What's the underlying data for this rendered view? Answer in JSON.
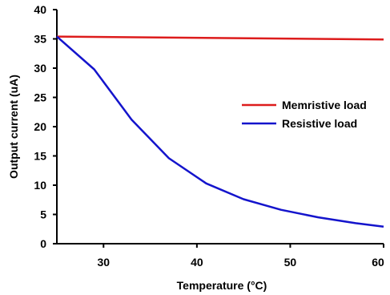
{
  "chart_data": {
    "type": "line",
    "xlabel": "Temperature (°C)",
    "ylabel": "Output current (uA)",
    "xlim": [
      25,
      60
    ],
    "ylim": [
      0,
      40
    ],
    "x_ticks": [
      30,
      40,
      50,
      60
    ],
    "y_ticks": [
      0,
      5,
      10,
      15,
      20,
      25,
      30,
      35,
      40
    ],
    "grid": false,
    "legend_position": "right",
    "series": [
      {
        "name": "Memristive load",
        "color": "#dd1c1c",
        "x": [
          25,
          60
        ],
        "y": [
          35.4,
          34.9
        ]
      },
      {
        "name": "Resistive load",
        "color": "#1414cc",
        "x": [
          25,
          29,
          33,
          37,
          41,
          45,
          49,
          53,
          57,
          60
        ],
        "y": [
          35.4,
          29.8,
          21.2,
          14.6,
          10.3,
          7.6,
          5.8,
          4.5,
          3.5,
          2.9
        ]
      }
    ]
  }
}
